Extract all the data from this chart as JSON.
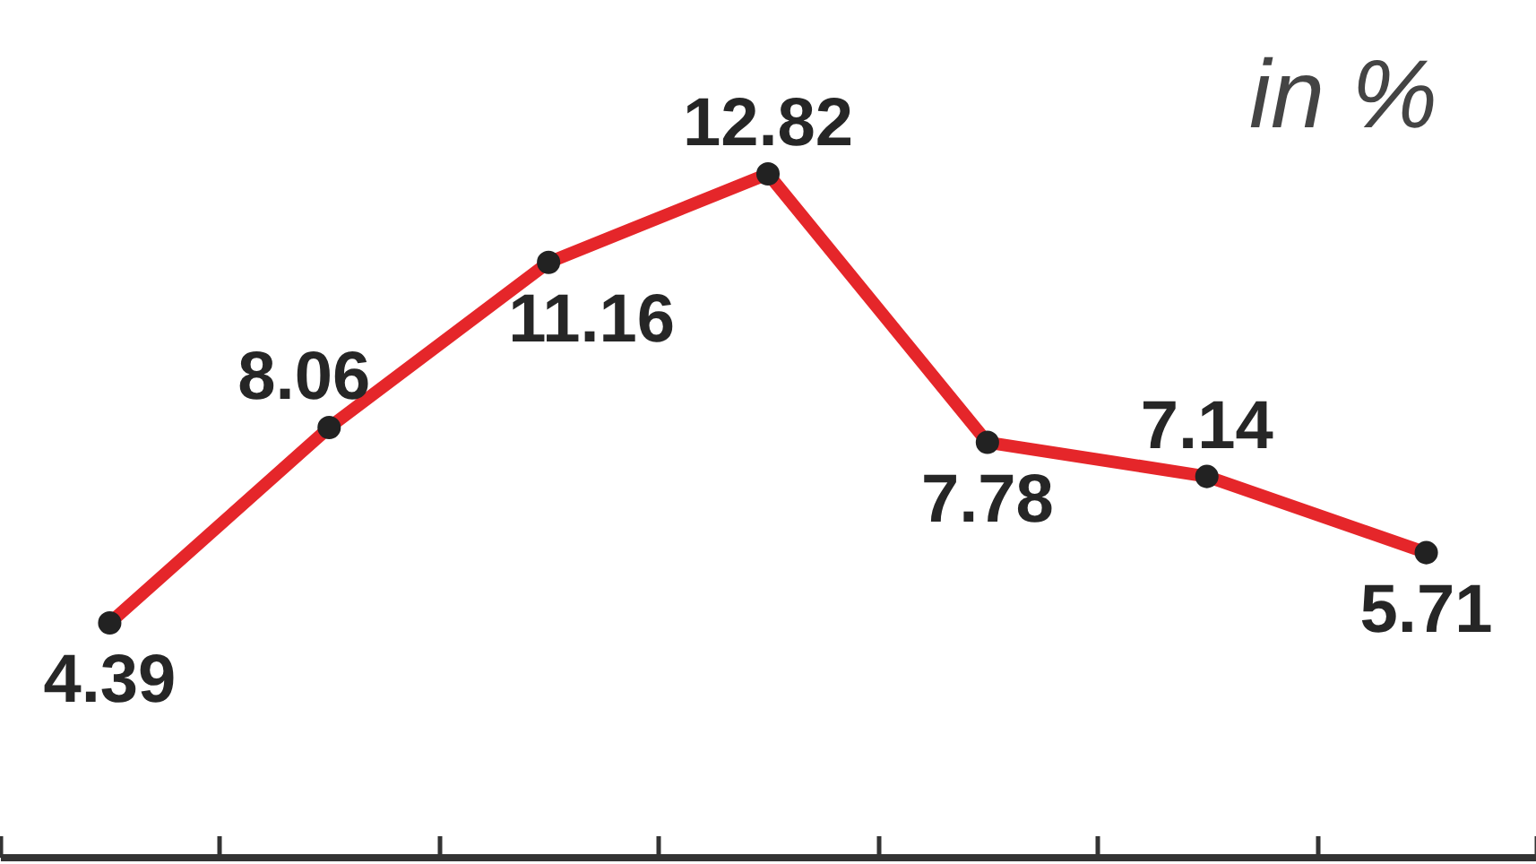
{
  "chart_data": {
    "type": "line",
    "categories": [
      null,
      null,
      null,
      null,
      null,
      null,
      null
    ],
    "values": [
      4.39,
      8.06,
      11.16,
      12.82,
      7.78,
      7.14,
      5.71
    ],
    "color": "#e5262a",
    "marker": "circle",
    "line_style": "solid",
    "data_labels": true,
    "annotations": [
      "in %"
    ]
  }
}
